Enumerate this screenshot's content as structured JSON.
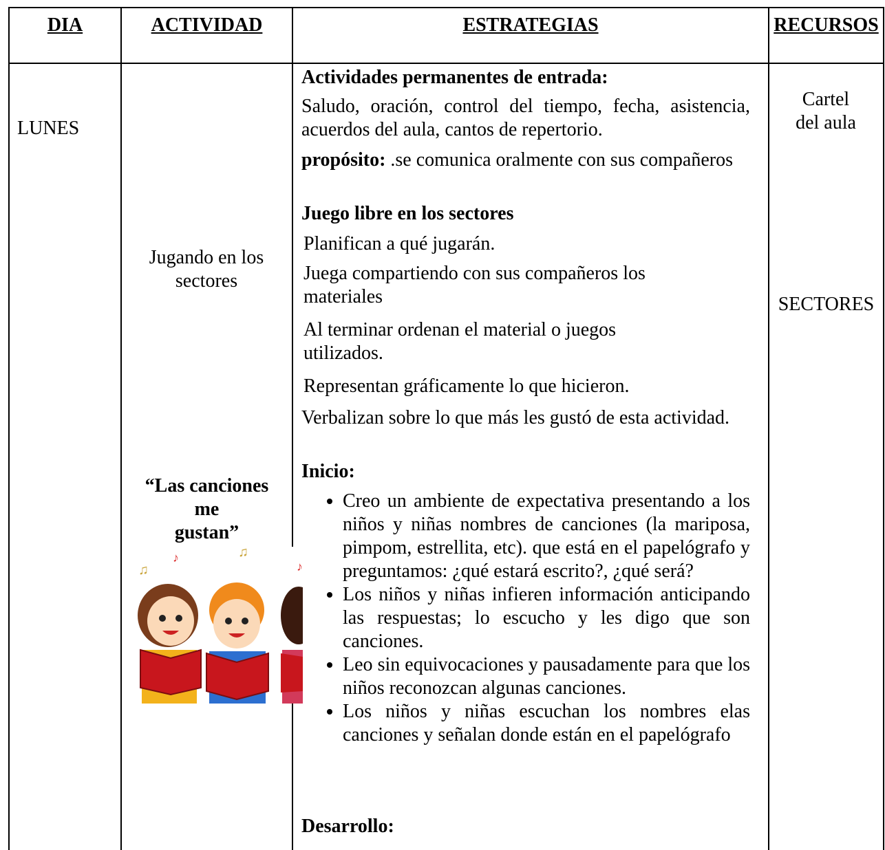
{
  "table": {
    "header": [
      "DIA",
      "ACTIVIDAD",
      "ESTRATEGIAS",
      "RECURSOS"
    ],
    "dia": "LUNES",
    "actividades": [
      {
        "text": "Jugando en los sectores"
      },
      {
        "lines": [
          "“Las canciones",
          "me",
          "gustan”"
        ]
      }
    ],
    "estrategias": {
      "entrada_title": "Actividades permanentes de entrada:",
      "entrada_text": "Saludo, oración, control del tiempo, fecha, asistencia, acuerdos del aula, cantos de repertorio.",
      "proposito_label": "propósito:",
      "proposito_text": ".se comunica oralmente con sus compañeros",
      "juego_title": "Juego libre en los sectores",
      "juego_items": [
        "Planifican a qué jugarán.",
        "Juega compartiendo con sus compañeros los materiales",
        "Al terminar ordenan el material o juegos utilizados.",
        "Representan gráficamente lo que hicieron.",
        "Verbalizan sobre lo que más les gustó de esta actividad."
      ],
      "inicio_title": "Inicio:",
      "inicio_items": [
        "Creo un ambiente de expectativa presentando a los niños y niñas nombres de canciones (la mariposa, pimpom, estrellita, etc). que está en el papelógrafo y preguntamos: ¿qué estará escrito?, ¿qué será?",
        "Los niños y niñas  infieren información anticipando las respuestas; lo escucho y les digo  que son canciones.",
        "Leo sin equivocaciones y pausadamente para que los niños reconozcan algunas canciones.",
        "Los niños y niñas escuchan los nombres elas canciones y señalan donde están en el papelógrafo"
      ],
      "desarrollo_title": "Desarrollo:"
    },
    "recursos": [
      "Cartel del aula",
      "SECTORES"
    ]
  }
}
